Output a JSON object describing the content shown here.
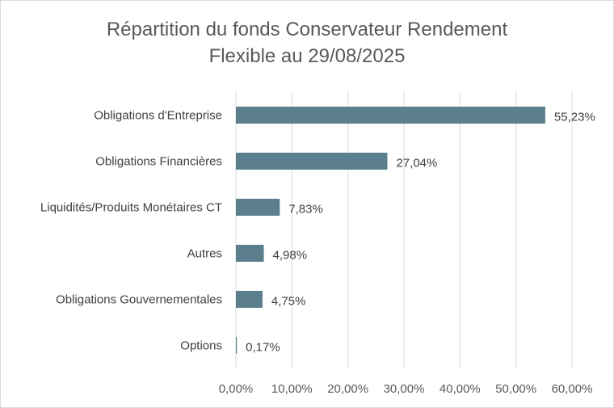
{
  "chart_data": {
    "type": "bar",
    "orientation": "horizontal",
    "title_line1": "Répartition du fonds Conservateur Rendement",
    "title_line2": "Flexible au 29/08/2025",
    "categories": [
      "Obligations d'Entreprise",
      "Obligations Financières",
      "Liquidités/Produits Monétaires CT",
      "Autres",
      "Obligations Gouvernementales",
      "Options"
    ],
    "values": [
      55.23,
      27.04,
      7.83,
      4.98,
      4.75,
      0.17
    ],
    "value_labels": [
      "55,23%",
      "27,04%",
      "7,83%",
      "4,98%",
      "4,75%",
      "0,17%"
    ],
    "xlim": [
      0,
      60
    ],
    "x_ticks": [
      0,
      10,
      20,
      30,
      40,
      50,
      60
    ],
    "x_tick_labels": [
      "0,00%",
      "10,00%",
      "20,00%",
      "30,00%",
      "40,00%",
      "50,00%",
      "60,00%"
    ],
    "bar_color": "#5b7f8c",
    "grid": true,
    "grid_color": "#d9d9d9",
    "legend": "none"
  }
}
